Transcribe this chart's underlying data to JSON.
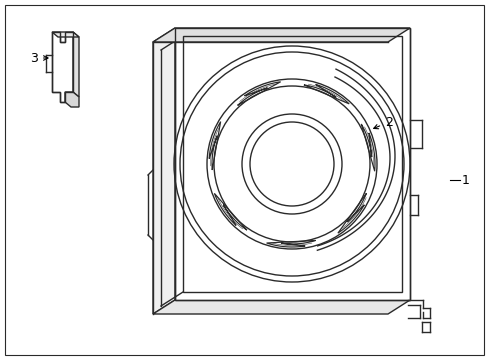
{
  "bg_color": "#ffffff",
  "line_color": "#2a2a2a",
  "lw": 1.0,
  "lw_thin": 0.7,
  "label_fontsize": 9,
  "figsize": [
    4.89,
    3.6
  ],
  "dpi": 100
}
